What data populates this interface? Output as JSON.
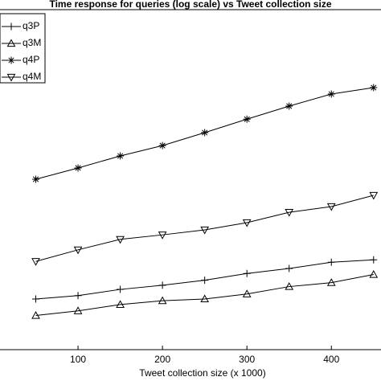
{
  "chart_data": {
    "type": "line",
    "title": "Time response for queries (log scale) vs Tweet collection size",
    "x_label": "Tweet collection size (x 1000)",
    "x": [
      50,
      100,
      150,
      200,
      250,
      300,
      350,
      400,
      450
    ],
    "xlim": [
      0,
      474
    ],
    "xticks": [
      100,
      200,
      300,
      400
    ],
    "ylim": [
      0.1,
      100
    ],
    "log_scale": true,
    "legend": "upper left",
    "series": [
      {
        "name": "q3P",
        "color": "#000000",
        "marker": "+",
        "values": [
          0.28,
          0.3,
          0.34,
          0.37,
          0.41,
          0.47,
          0.52,
          0.59,
          0.62
        ]
      },
      {
        "name": "q3M",
        "color": "#000000",
        "marker": "^",
        "values": [
          0.2,
          0.22,
          0.25,
          0.27,
          0.28,
          0.31,
          0.36,
          0.39,
          0.46
        ]
      },
      {
        "name": "q4P",
        "color": "#000000",
        "marker": "*",
        "values": [
          3.19,
          4.01,
          5.12,
          6.32,
          8.22,
          10.8,
          14.1,
          18.0,
          20.5
        ]
      },
      {
        "name": "q4M",
        "color": "#000000",
        "marker": "v",
        "values": [
          0.6,
          0.76,
          0.94,
          1.03,
          1.14,
          1.32,
          1.63,
          1.83,
          2.3
        ]
      }
    ]
  }
}
